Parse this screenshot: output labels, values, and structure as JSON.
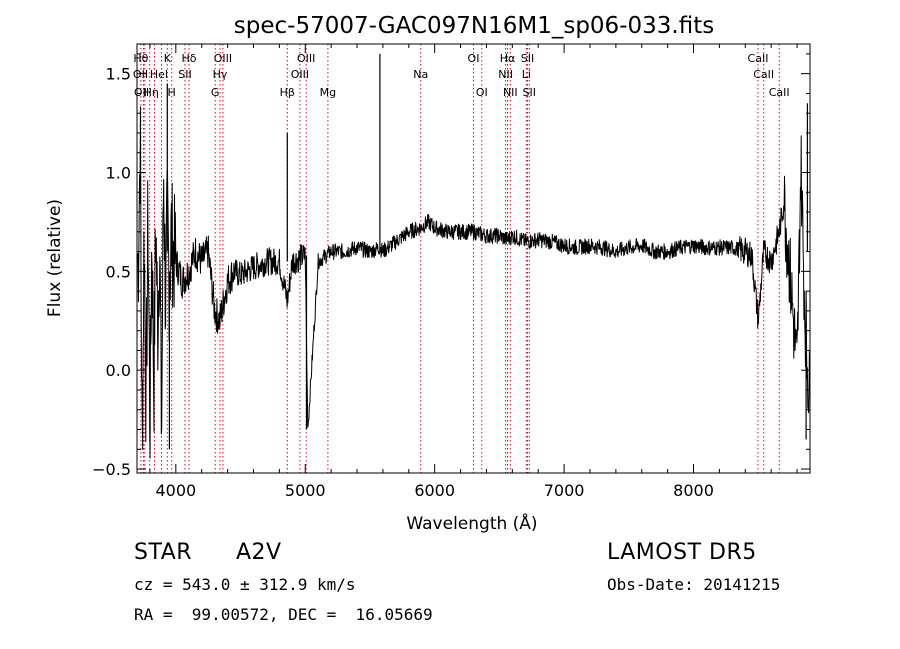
{
  "chart_data": {
    "type": "line",
    "title": "spec-57007-GAC097N16M1_sp06-033.fits",
    "xlabel": "Wavelength (Å)",
    "ylabel": "Flux (relative)",
    "xlim": [
      3700,
      8900
    ],
    "ylim": [
      -0.52,
      1.65
    ],
    "x_ticks": [
      4000,
      5000,
      6000,
      7000,
      8000
    ],
    "y_ticks": [
      -0.5,
      0.0,
      0.5,
      1.0,
      1.5
    ],
    "y_tick_labels": [
      "−0.5",
      "0.0",
      "0.5",
      "1.0",
      "1.5"
    ],
    "grid": false,
    "series": [
      {
        "x": [
          3710,
          3725,
          3740,
          3755,
          3770,
          3785,
          3800,
          3815,
          3830,
          3845,
          3860,
          3875,
          3890,
          3905,
          3920,
          3935,
          3950,
          3965,
          3980,
          4000,
          4050,
          4100,
          4150,
          4200,
          4250,
          4300,
          4340,
          4400,
          4450,
          4500,
          4600,
          4700,
          4800,
          4861,
          4900,
          5000,
          5020,
          5100,
          5200,
          5300,
          5400,
          5500,
          5577,
          5600,
          5700,
          5800,
          5890,
          5950,
          6000,
          6100,
          6200,
          6300,
          6400,
          6500,
          6563,
          6600,
          6700,
          6800,
          6900,
          7000,
          7100,
          7200,
          7300,
          7400,
          7500,
          7600,
          7700,
          7800,
          7900,
          8000,
          8100,
          8200,
          8300,
          8400,
          8450,
          8500,
          8542,
          8600,
          8662,
          8700,
          8750,
          8800,
          8830,
          8860,
          8890
        ],
        "y": [
          0.55,
          1.2,
          -0.45,
          0.75,
          -0.2,
          0.8,
          -0.3,
          0.7,
          -0.1,
          0.75,
          0.2,
          0.7,
          -0.35,
          1.05,
          0.35,
          0.8,
          0.4,
          0.7,
          0.6,
          0.55,
          0.45,
          0.5,
          0.6,
          0.55,
          0.6,
          0.3,
          0.25,
          0.45,
          0.5,
          0.48,
          0.52,
          0.55,
          0.55,
          0.35,
          0.55,
          0.58,
          -0.3,
          0.55,
          0.6,
          0.6,
          0.62,
          0.6,
          0.62,
          0.6,
          0.65,
          0.7,
          0.72,
          0.75,
          0.72,
          0.7,
          0.7,
          0.7,
          0.68,
          0.68,
          0.66,
          0.68,
          0.65,
          0.66,
          0.65,
          0.63,
          0.62,
          0.63,
          0.62,
          0.6,
          0.62,
          0.63,
          0.6,
          0.6,
          0.62,
          0.63,
          0.62,
          0.62,
          0.62,
          0.6,
          0.58,
          0.25,
          0.6,
          0.55,
          0.7,
          0.85,
          0.45,
          0.0,
          1.05,
          0.3,
          -0.1
        ]
      }
    ],
    "lines": [
      {
        "x": 3730,
        "label": "Hθ"
      },
      {
        "x": 3750,
        "label": "OII"
      },
      {
        "x": 3760,
        "label": "OII"
      },
      {
        "x": 3798,
        "label": "Hη"
      },
      {
        "x": 3835,
        "label": ""
      },
      {
        "x": 3889,
        "label": "HeI"
      },
      {
        "x": 3934,
        "label": "K"
      },
      {
        "x": 3968,
        "label": "H"
      },
      {
        "x": 4071,
        "label": "SII"
      },
      {
        "x": 4102,
        "label": "Hδ"
      },
      {
        "x": 4304,
        "label": "G"
      },
      {
        "x": 4341,
        "label": "Hγ"
      },
      {
        "x": 4364,
        "label": "OIII"
      },
      {
        "x": 4861,
        "label": "Hβ"
      },
      {
        "x": 4959,
        "label": "OIII"
      },
      {
        "x": 5007,
        "label": "OIII"
      },
      {
        "x": 5175,
        "label": "Mg"
      },
      {
        "x": 5893,
        "label": "Na"
      },
      {
        "x": 6300,
        "label": "OI"
      },
      {
        "x": 6364,
        "label": "OI"
      },
      {
        "x": 6548,
        "label": "NII"
      },
      {
        "x": 6563,
        "label": "Hα"
      },
      {
        "x": 6584,
        "label": "NII"
      },
      {
        "x": 6708,
        "label": "Li"
      },
      {
        "x": 6717,
        "label": "SII"
      },
      {
        "x": 6731,
        "label": "SII"
      },
      {
        "x": 8498,
        "label": "CaII"
      },
      {
        "x": 8542,
        "label": "CaII"
      },
      {
        "x": 8662,
        "label": "CaII"
      }
    ],
    "line_labels": [
      {
        "text": "Hθ",
        "x": 3730,
        "row": 1
      },
      {
        "text": "OII",
        "x": 3727,
        "row": 2
      },
      {
        "text": "OII",
        "x": 3735,
        "row": 3
      },
      {
        "text": "Hη",
        "x": 3810,
        "row": 3
      },
      {
        "text": "HeI",
        "x": 3870,
        "row": 2
      },
      {
        "text": "K",
        "x": 3934,
        "row": 1
      },
      {
        "text": "H",
        "x": 3968,
        "row": 3
      },
      {
        "text": "SII",
        "x": 4071,
        "row": 2
      },
      {
        "text": "Hδ",
        "x": 4102,
        "row": 1
      },
      {
        "text": "Hγ",
        "x": 4341,
        "row": 2
      },
      {
        "text": "G",
        "x": 4304,
        "row": 3
      },
      {
        "text": "OIII",
        "x": 4364,
        "row": 1
      },
      {
        "text": "Hβ",
        "x": 4861,
        "row": 3
      },
      {
        "text": "OIII",
        "x": 4959,
        "row": 2
      },
      {
        "text": "OIII",
        "x": 5007,
        "row": 1
      },
      {
        "text": "Mg",
        "x": 5175,
        "row": 3
      },
      {
        "text": "Na",
        "x": 5893,
        "row": 2
      },
      {
        "text": "OI",
        "x": 6300,
        "row": 1
      },
      {
        "text": "OI",
        "x": 6364,
        "row": 3
      },
      {
        "text": "Hα",
        "x": 6563,
        "row": 1
      },
      {
        "text": "NII",
        "x": 6548,
        "row": 2
      },
      {
        "text": "NII",
        "x": 6584,
        "row": 3
      },
      {
        "text": "SII",
        "x": 6717,
        "row": 1
      },
      {
        "text": "Li",
        "x": 6708,
        "row": 2
      },
      {
        "text": "SII",
        "x": 6731,
        "row": 3
      },
      {
        "text": "CaII",
        "x": 8498,
        "row": 1
      },
      {
        "text": "CaII",
        "x": 8542,
        "row": 2
      },
      {
        "text": "CaII",
        "x": 8662,
        "row": 3
      }
    ]
  },
  "info": {
    "class_label": "STAR",
    "subclass": "A2V",
    "survey": "LAMOST DR5",
    "cz": "cz = 543.0 ± 312.9 km/s",
    "obs_date": "Obs-Date: 20141215",
    "coords": "RA =  99.00572, DEC =  16.05669"
  }
}
